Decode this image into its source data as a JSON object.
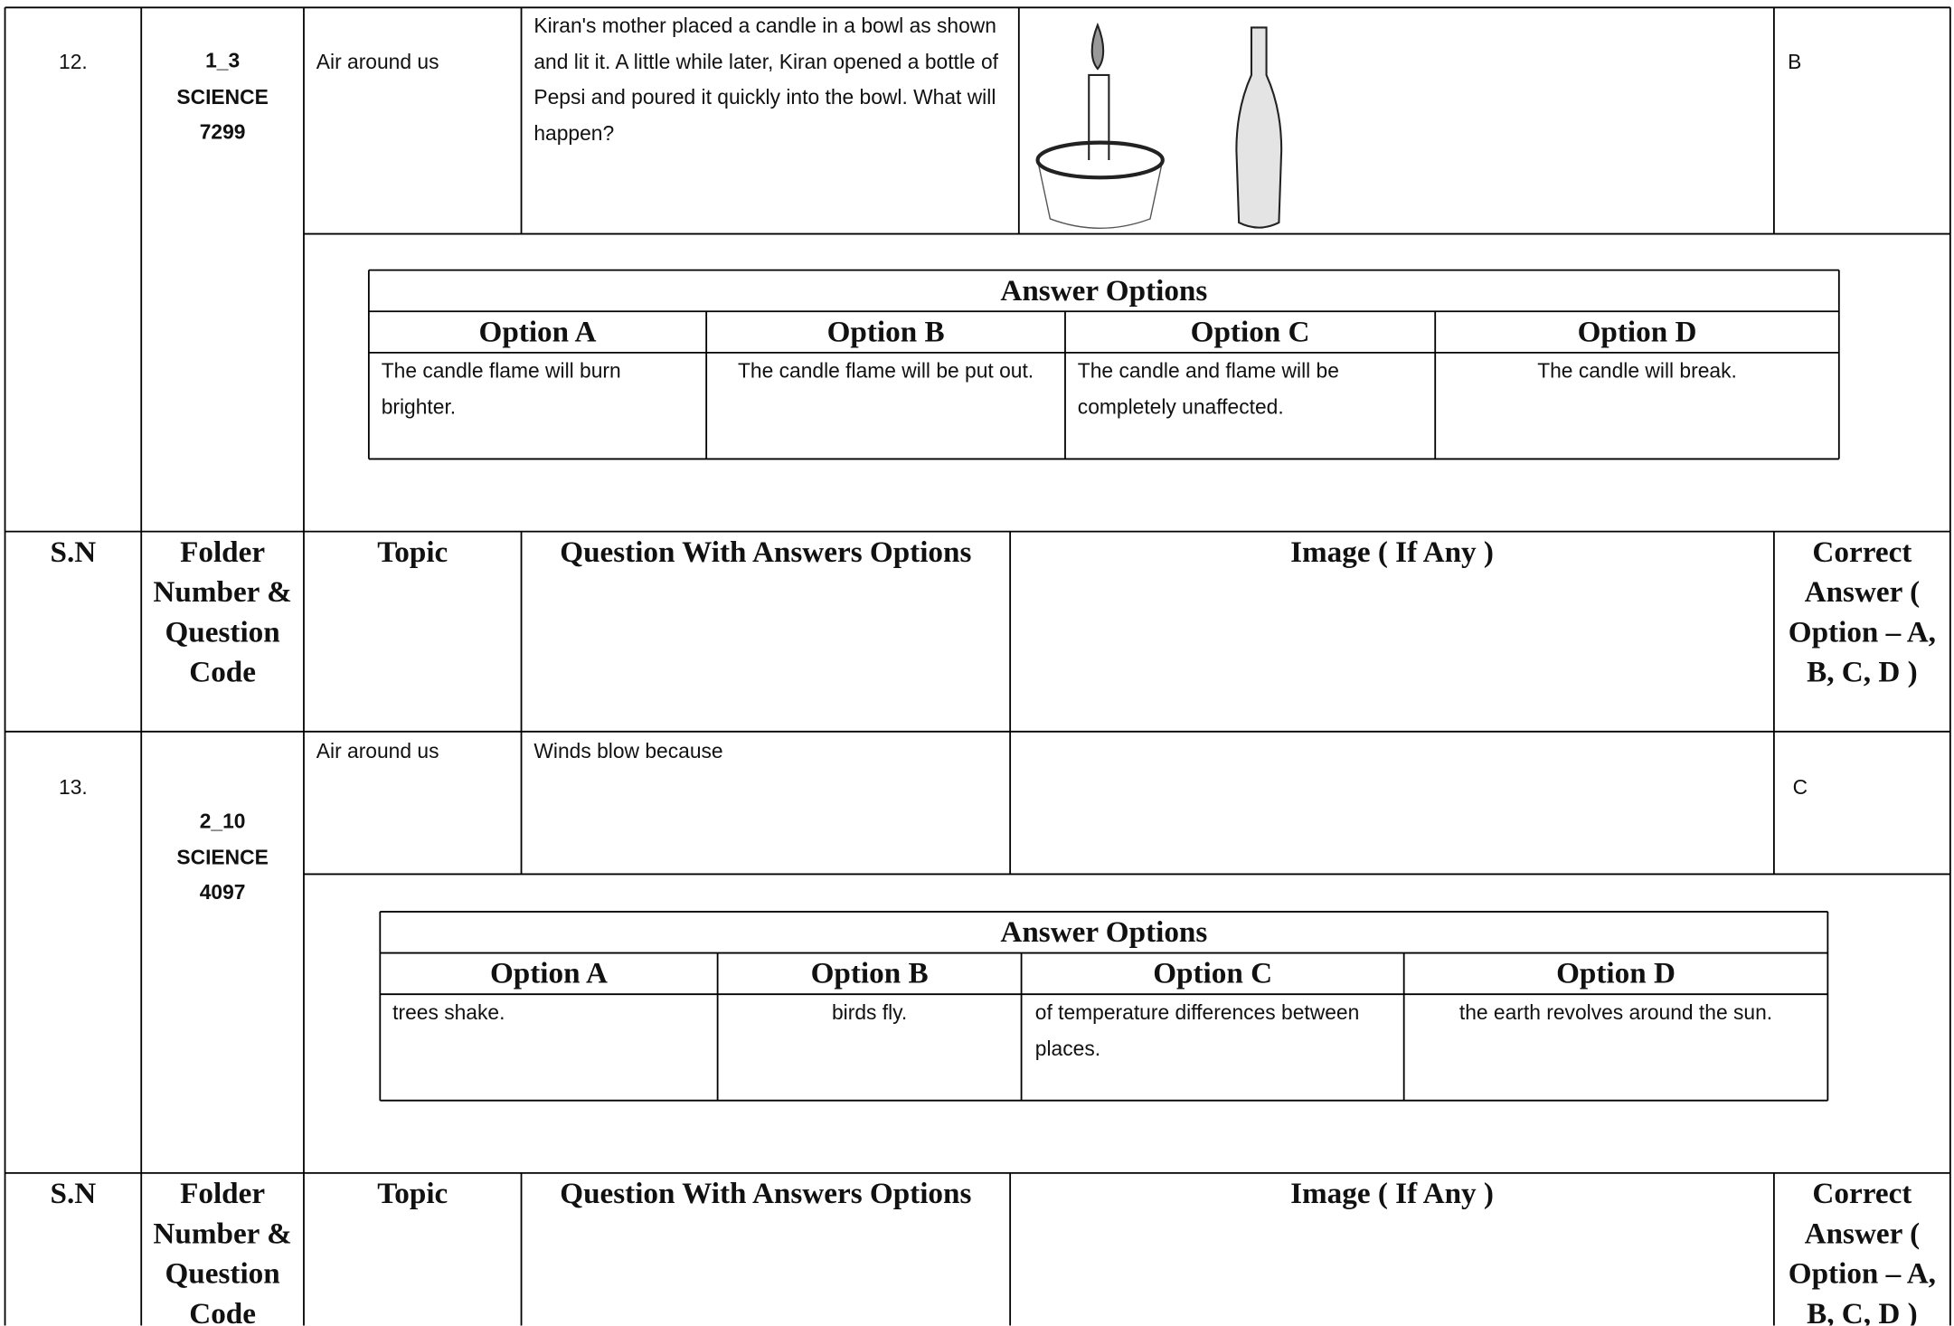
{
  "sections": [
    {
      "sn": "12.",
      "folder_code": [
        "1_3",
        "SCIENCE",
        "7299"
      ],
      "topic": "Air around us",
      "question": "Kiran's mother placed a candle in a bowl as shown and lit it. A little while later, Kiran opened a bottle of Pepsi and poured it quickly into the bowl. What will happen?",
      "correct_answer": "B",
      "answer_options": {
        "title": "Answer Options",
        "headers": [
          "Option A",
          "Option B",
          "Option C",
          "Option D"
        ],
        "options": [
          "The candle flame will burn brighter.",
          "The candle flame will be put out.",
          "The candle and flame will be completely unaffected.",
          "The candle will break."
        ]
      }
    },
    {
      "header": {
        "sn": "S.N",
        "folder": "Folder Number & Question Code",
        "topic": "Topic",
        "question": "Question With Answers Options",
        "image": "Image ( If Any )",
        "correct": "Correct Answer ( Option – A, B, C, D )"
      }
    },
    {
      "sn": "13.",
      "folder_code": [
        "2_10",
        "SCIENCE",
        "4097"
      ],
      "topic": "Air around us",
      "question": "Winds blow because",
      "correct_answer": "C",
      "answer_options": {
        "title": "Answer Options",
        "headers": [
          "Option A",
          "Option B",
          "Option C",
          "Option D"
        ],
        "options": [
          "trees shake.",
          "birds fly.",
          "of temperature differences between places.",
          "the earth revolves around the sun."
        ]
      }
    },
    {
      "header": {
        "sn": "S.N",
        "folder": "Folder Number & Question Code",
        "topic": "Topic",
        "question": "Question With Answers Options",
        "image": "Image ( If Any )",
        "correct": "Correct Answer ( Option – A, B, C, D )"
      }
    }
  ]
}
